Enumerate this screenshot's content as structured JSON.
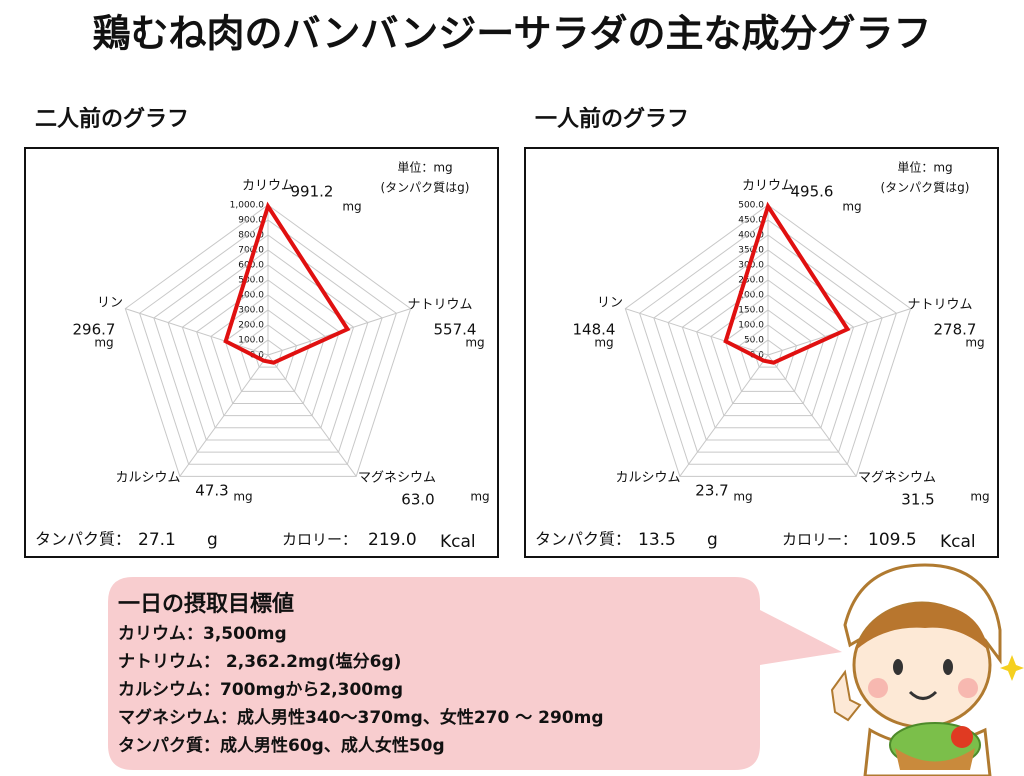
{
  "title": "鶏むね肉のバンバンジーサラダの主な成分グラフ",
  "chart_data": [
    {
      "type": "radar",
      "title": "二人前のグラフ",
      "unit_note": [
        "単位：mg",
        "(タンパク質はg)"
      ],
      "categories": [
        "カリウム",
        "ナトリウム",
        "マグネシウム",
        "カルシウム",
        "リン"
      ],
      "values": [
        991.2,
        557.4,
        63.0,
        47.3,
        296.7
      ],
      "value_labels": [
        "991.2",
        "557.4",
        "63.0",
        "47.3",
        "296.7"
      ],
      "units": [
        "mg",
        "mg",
        "mg",
        "mg",
        "mg"
      ],
      "color": "#e01010",
      "ylim": [
        0,
        1000
      ],
      "yticks": [
        {
          "value": 0,
          "label": "0.0"
        },
        {
          "value": 100,
          "label": "100.0"
        },
        {
          "value": 200,
          "label": "200.0"
        },
        {
          "value": 300,
          "label": "300.0"
        },
        {
          "value": 400,
          "label": "400.0"
        },
        {
          "value": 500,
          "label": "500.0"
        },
        {
          "value": 600,
          "label": "600.0"
        },
        {
          "value": 700,
          "label": "700.0"
        },
        {
          "value": 800,
          "label": "800.0"
        },
        {
          "value": 900,
          "label": "900.0"
        },
        {
          "value": 1000,
          "label": "1,000.0"
        }
      ],
      "footer": {
        "protein_label": "タンパク質：",
        "protein": "27.1",
        "protein_unit": "g",
        "calorie_label": "カロリー：",
        "calorie": "219.0",
        "calorie_unit": "Kcal"
      }
    },
    {
      "type": "radar",
      "title": "一人前のグラフ",
      "unit_note": [
        "単位：mg",
        "(タンパク質はg)"
      ],
      "categories": [
        "カリウム",
        "ナトリウム",
        "マグネシウム",
        "カルシウム",
        "リン"
      ],
      "values": [
        495.6,
        278.7,
        31.5,
        23.7,
        148.4
      ],
      "value_labels": [
        "495.6",
        "278.7",
        "31.5",
        "23.7",
        "148.4"
      ],
      "units": [
        "mg",
        "mg",
        "mg",
        "mg",
        "mg"
      ],
      "color": "#e01010",
      "ylim": [
        0,
        500
      ],
      "yticks": [
        {
          "value": 0,
          "label": "0.0"
        },
        {
          "value": 50,
          "label": "50.0"
        },
        {
          "value": 100,
          "label": "100.0"
        },
        {
          "value": 150,
          "label": "150.0"
        },
        {
          "value": 200,
          "label": "200.0"
        },
        {
          "value": 250,
          "label": "250.0"
        },
        {
          "value": 300,
          "label": "300.0"
        },
        {
          "value": 350,
          "label": "350.0"
        },
        {
          "value": 400,
          "label": "400.0"
        },
        {
          "value": 450,
          "label": "450.0"
        },
        {
          "value": 500,
          "label": "500.0"
        }
      ],
      "footer": {
        "protein_label": "タンパク質：",
        "protein": "13.5",
        "protein_unit": "g",
        "calorie_label": "カロリー：",
        "calorie": "109.5",
        "calorie_unit": "Kcal"
      }
    }
  ],
  "info": {
    "title": "一日の摂取目標値",
    "lines": [
      "カリウム：3,500mg",
      "ナトリウム： 2,362.2mg(塩分6g)",
      "カルシウム：700mgから2,300mg",
      "マグネシウム：成人男性340～370mg、女性270 ～ 290mg",
      "タンパク質：成人男性60g、成人女性50g"
    ]
  }
}
